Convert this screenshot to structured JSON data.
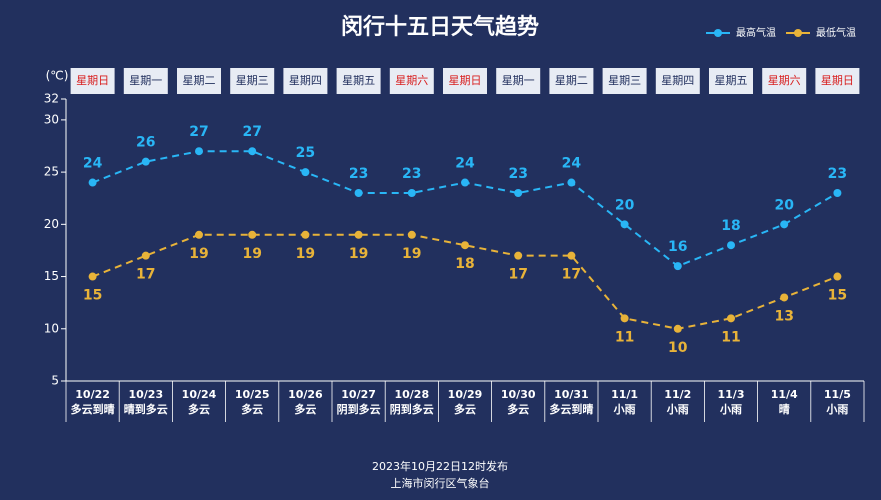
{
  "chart_data": {
    "type": "line",
    "title": "闵行十五日天气趋势",
    "y_label": "(℃)",
    "categories": [
      "10/22",
      "10/23",
      "10/24",
      "10/25",
      "10/26",
      "10/27",
      "10/28",
      "10/29",
      "10/30",
      "10/31",
      "11/1",
      "11/2",
      "11/3",
      "11/4",
      "11/5"
    ],
    "weather": [
      "多云到晴",
      "晴到多云",
      "多云",
      "多云",
      "多云",
      "阴到多云",
      "阴到多云",
      "多云",
      "多云",
      "多云到晴",
      "小雨",
      "小雨",
      "小雨",
      "晴",
      "小雨"
    ],
    "weekdays": [
      "星期日",
      "星期一",
      "星期二",
      "星期三",
      "星期四",
      "星期五",
      "星期六",
      "星期日",
      "星期一",
      "星期二",
      "星期三",
      "星期四",
      "星期五",
      "星期六",
      "星期日"
    ],
    "weekday_colors": [
      "#d81e1e",
      "#22305e",
      "#22305e",
      "#22305e",
      "#22305e",
      "#22305e",
      "#d81e1e",
      "#d81e1e",
      "#22305e",
      "#22305e",
      "#22305e",
      "#22305e",
      "#22305e",
      "#d81e1e",
      "#d81e1e"
    ],
    "series": [
      {
        "name": "最高气温",
        "color": "#29b6f6",
        "values": [
          24,
          26,
          27,
          27,
          25,
          23,
          23,
          24,
          23,
          24,
          20,
          16,
          18,
          20,
          23
        ]
      },
      {
        "name": "最低气温",
        "color": "#e8b339",
        "values": [
          15,
          17,
          19,
          19,
          19,
          19,
          19,
          18,
          17,
          17,
          11,
          10,
          11,
          13,
          15
        ]
      }
    ],
    "ylim": [
      5,
      32
    ],
    "yticks": [
      5,
      10,
      15,
      20,
      25,
      30,
      32
    ],
    "grid": false,
    "footer": [
      "2023年10月22日12时发布",
      "上海市闵行区气象台"
    ]
  }
}
